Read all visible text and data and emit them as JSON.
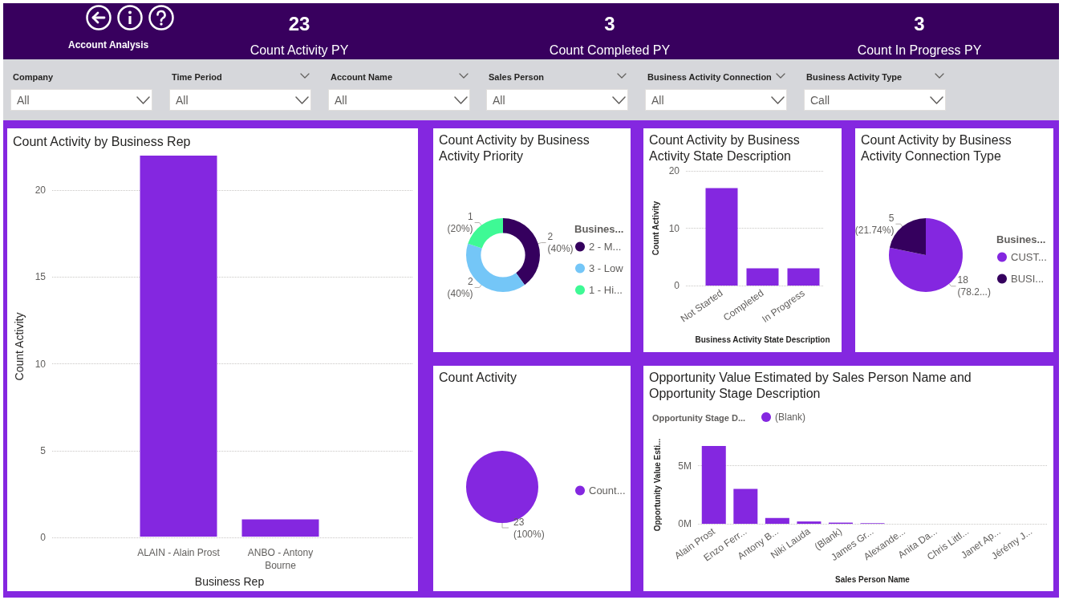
{
  "chart_data": [
    {
      "type": "other",
      "title": "Account Analysis",
      "categories": [
        "Count Activity PY",
        "Count Completed PY",
        "Count In Progress PY"
      ],
      "values": [
        23,
        3,
        3
      ],
      "data_labels": true
    },
    {
      "type": "other",
      "categories": [
        "Company",
        "Time Period",
        "Account Name",
        "Sales Person",
        "Business Activity Connection",
        "Business Activity Type"
      ],
      "annotations": [
        "All",
        "All",
        "All",
        "All",
        "All",
        "Call"
      ]
    },
    {
      "type": "bar",
      "title": "Count Activity by Business Rep",
      "categories": [
        "ALAIN - Alain Prost",
        "ANBO - Antony Bourne"
      ],
      "values": [
        22,
        1
      ],
      "color": "#8427e0",
      "xlabel": "Business Rep",
      "ylabel": "Count Activity",
      "ylim": [
        0,
        22
      ],
      "yticks": [
        0,
        5,
        10,
        15,
        20
      ],
      "grid": "y"
    },
    {
      "type": "donut",
      "title": "Count Activity by Business Activity Priority",
      "categories": [
        "2 - M...",
        "3 - Low",
        "1 - Hi..."
      ],
      "values": [
        2,
        2,
        1
      ],
      "colors": [
        "#35005e",
        "#74c6f7",
        "#3ef995"
      ],
      "value_labels": [
        "2 (40%)",
        "2 (40%)",
        "1 (20%)"
      ],
      "legend": "right",
      "legend_title": "Busines..."
    },
    {
      "type": "bar",
      "title": "Count Activity by Business Activity State Description",
      "categories": [
        "Not Started",
        "Completed",
        "In Progress"
      ],
      "values": [
        17,
        3,
        3
      ],
      "color": "#8427e0",
      "xlabel": "Business Activity State Description",
      "ylabel": "Count Activity",
      "ylim": [
        0,
        20
      ],
      "yticks": [
        0,
        10,
        20
      ],
      "grid": "y"
    },
    {
      "type": "pie",
      "title": "Count Activity by Business Activity Connection Type",
      "categories": [
        "CUST...",
        "BUSI..."
      ],
      "values": [
        18,
        5
      ],
      "colors": [
        "#8427e0",
        "#35005e"
      ],
      "value_labels": [
        "18 (78.2...)",
        "5 (21.74%)"
      ],
      "legend": "right",
      "legend_title": "Busines..."
    },
    {
      "type": "pie",
      "title": "Count Activity",
      "categories": [
        "Count..."
      ],
      "values": [
        23
      ],
      "colors": [
        "#8427e0"
      ],
      "value_labels": [
        "23 (100%)"
      ],
      "legend": "right"
    },
    {
      "type": "bar",
      "title": "Opportunity Value Estimated by Sales Person Name and Opportunity Stage Description",
      "categories": [
        "Alain Prost",
        "Enzo Ferr...",
        "Antony B...",
        "Niki Lauda",
        "(Blank)",
        "James Gr...",
        "Alexande...",
        "Anita Da...",
        "Chris Littl...",
        "Janet Ap...",
        "Jérémy J..."
      ],
      "series": [
        {
          "name": "(Blank)",
          "color": "#8427e0",
          "values": [
            6700000,
            3000000,
            500000,
            200000,
            100000,
            50000,
            0,
            0,
            0,
            0,
            0
          ]
        }
      ],
      "xlabel": "Sales Person Name",
      "ylabel": "Opportunity Value Esti...",
      "ylim": [
        0,
        6700000
      ],
      "yticks": [
        {
          "value": 0,
          "label": "0M"
        },
        {
          "value": 5000000,
          "label": "5M"
        }
      ],
      "grid": "y",
      "legend": "top left",
      "legend_title": "Opportunity Stage D..."
    }
  ]
}
